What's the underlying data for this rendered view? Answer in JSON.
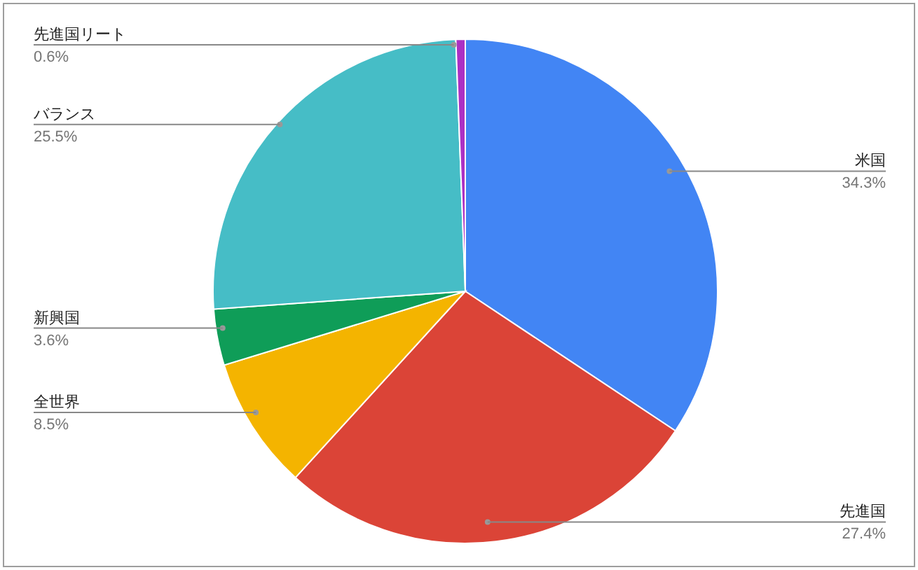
{
  "chart_data": {
    "type": "pie",
    "categories": [
      "米国",
      "先進国",
      "全世界",
      "新興国",
      "バランス",
      "先進国リート"
    ],
    "values": [
      34.3,
      27.4,
      8.5,
      3.6,
      25.5,
      0.6
    ],
    "value_labels": [
      "34.3%",
      "27.4%",
      "8.5%",
      "3.6%",
      "25.5%",
      "0.6%"
    ],
    "colors": [
      "#4285f4",
      "#db4437",
      "#f4b400",
      "#0f9d58",
      "#46bdc6",
      "#ab30c4"
    ]
  }
}
